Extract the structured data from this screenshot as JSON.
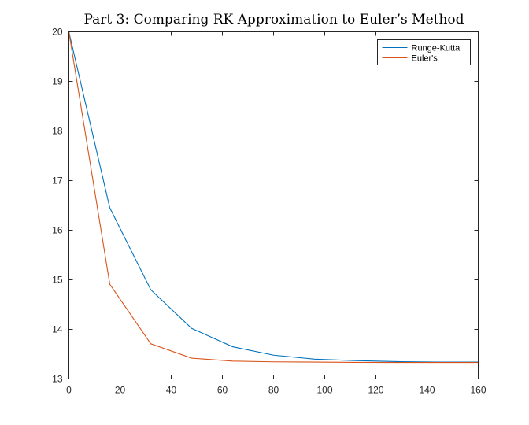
{
  "chart_data": {
    "type": "line",
    "title": "Part 3: Comparing RK Approximation to Euler’s Method",
    "xlabel": "",
    "ylabel": "",
    "xlim": [
      0,
      160
    ],
    "ylim": [
      13,
      20
    ],
    "xticks": [
      0,
      20,
      40,
      60,
      80,
      100,
      120,
      140,
      160
    ],
    "yticks": [
      13,
      14,
      15,
      16,
      17,
      18,
      19,
      20
    ],
    "grid": false,
    "legend_position": "top-right",
    "x": [
      0,
      16,
      32,
      48,
      64,
      80,
      96,
      112,
      128,
      144,
      160
    ],
    "series": [
      {
        "name": "Runge-Kutta",
        "color": "#0072BD",
        "values": [
          20,
          16.45,
          14.8,
          14.02,
          13.65,
          13.48,
          13.4,
          13.37,
          13.35,
          13.34,
          13.34
        ]
      },
      {
        "name": "Euler's",
        "color": "#D95319",
        "values": [
          20,
          14.91,
          13.71,
          13.42,
          13.36,
          13.345,
          13.34,
          13.335,
          13.333,
          13.333,
          13.333
        ]
      }
    ]
  }
}
